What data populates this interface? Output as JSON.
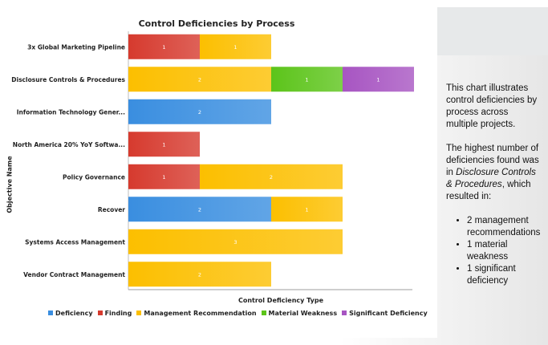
{
  "chart_data": {
    "type": "bar",
    "orientation": "horizontal",
    "stacked": true,
    "title": "Control Deficiencies by Process",
    "xlabel": "Control Deficiency Type",
    "ylabel": "Objective Name",
    "xlim": [
      0,
      4
    ],
    "grid": false,
    "legend_position": "bottom",
    "categories": [
      "3x Global Marketing Pipeline",
      "Disclosure Controls & Procedures",
      "Information Technology Gener...",
      "North America 20% YoY Softwa...",
      "Policy Governance",
      "Recover",
      "Systems Access Management",
      "Vendor Contract Management"
    ],
    "series": [
      {
        "name": "Deficiency",
        "color": "#3a8ee0",
        "values": [
          0,
          0,
          2,
          0,
          0,
          2,
          0,
          0
        ]
      },
      {
        "name": "Finding",
        "color": "#d63a2e",
        "values": [
          1,
          0,
          0,
          1,
          1,
          0,
          0,
          0
        ]
      },
      {
        "name": "Management Recommendation",
        "color": "#fcbf00",
        "values": [
          1,
          2,
          0,
          0,
          2,
          1,
          3,
          2
        ]
      },
      {
        "name": "Material Weakness",
        "color": "#5cc41a",
        "values": [
          0,
          1,
          0,
          0,
          0,
          0,
          0,
          0
        ]
      },
      {
        "name": "Significant Deficiency",
        "color": "#a755c2",
        "values": [
          0,
          1,
          0,
          0,
          0,
          0,
          0,
          0
        ]
      }
    ]
  },
  "description": {
    "intro": "This chart illustrates control deficiencies by process across multiple projects.",
    "highest_prefix": "The highest number of deficiencies found was in ",
    "highest_process": "Disclosure Controls & Procedures",
    "highest_suffix": ", which resulted in:",
    "bullets": [
      "2 management recommendations",
      "1 material weakness",
      "1 significant deficiency"
    ]
  }
}
